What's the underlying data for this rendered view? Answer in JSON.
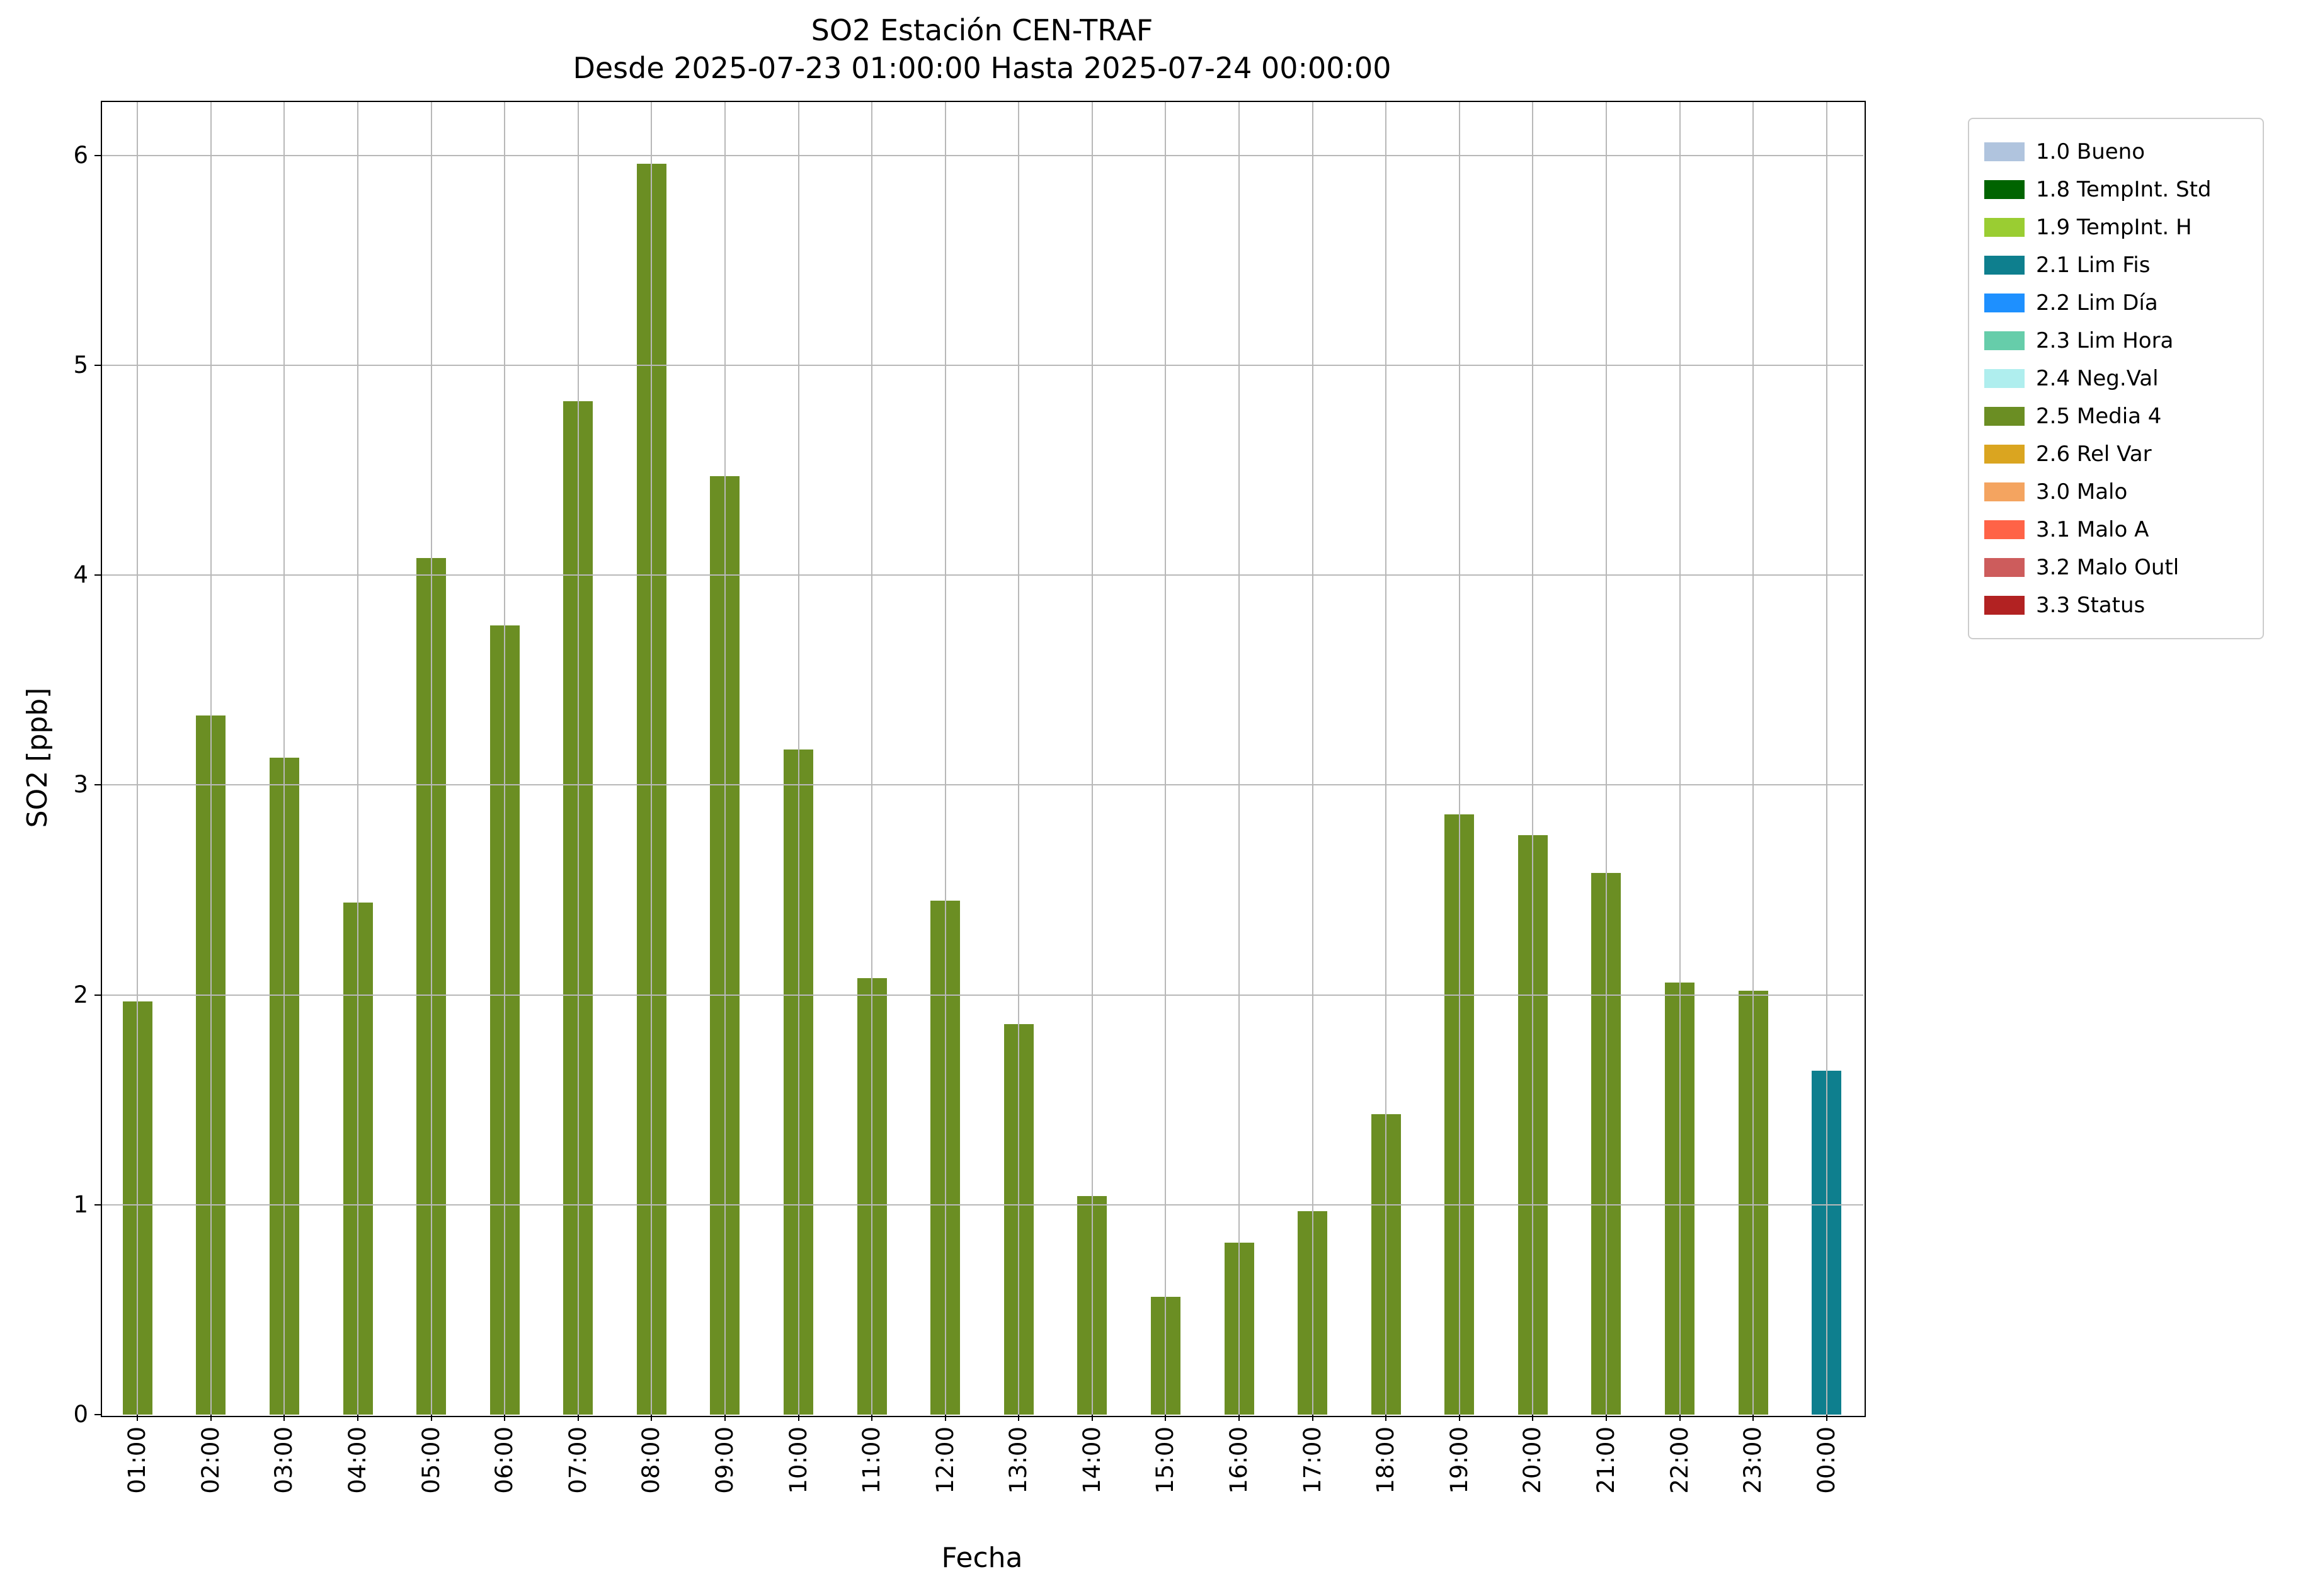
{
  "chart_data": {
    "type": "bar",
    "title": "SO2 Estación CEN-TRAF",
    "subtitle": "Desde 2025-07-23 01:00:00 Hasta 2025-07-24 00:00:00",
    "xlabel": "Fecha",
    "ylabel": "SO2 [ppb]",
    "ylim": [
      0,
      6.26
    ],
    "yticks": [
      0,
      1,
      2,
      3,
      4,
      5,
      6
    ],
    "grid": true,
    "grid_color": "#b8b8b8",
    "legend_position": "upper-right-outside",
    "categories": [
      "01:00",
      "02:00",
      "03:00",
      "04:00",
      "05:00",
      "06:00",
      "07:00",
      "08:00",
      "09:00",
      "10:00",
      "11:00",
      "12:00",
      "13:00",
      "14:00",
      "15:00",
      "16:00",
      "17:00",
      "18:00",
      "19:00",
      "20:00",
      "21:00",
      "22:00",
      "23:00",
      "00:00"
    ],
    "values": [
      1.97,
      3.33,
      3.13,
      2.44,
      4.08,
      3.76,
      4.83,
      5.96,
      4.47,
      3.17,
      2.08,
      2.45,
      1.86,
      1.04,
      0.56,
      0.82,
      0.97,
      1.43,
      2.86,
      2.76,
      2.58,
      2.06,
      2.02,
      1.64
    ],
    "bar_colors": [
      "#6b8e23",
      "#6b8e23",
      "#6b8e23",
      "#6b8e23",
      "#6b8e23",
      "#6b8e23",
      "#6b8e23",
      "#6b8e23",
      "#6b8e23",
      "#6b8e23",
      "#6b8e23",
      "#6b8e23",
      "#6b8e23",
      "#6b8e23",
      "#6b8e23",
      "#6b8e23",
      "#6b8e23",
      "#6b8e23",
      "#6b8e23",
      "#6b8e23",
      "#6b8e23",
      "#6b8e23",
      "#6b8e23",
      "#0e7f8e"
    ],
    "legend": [
      {
        "label": "1.0 Bueno",
        "color": "#b0c4de"
      },
      {
        "label": "1.8 TempInt. Std",
        "color": "#006400"
      },
      {
        "label": "1.9 TempInt. H",
        "color": "#9acd32"
      },
      {
        "label": "2.1 Lim Fis",
        "color": "#0e7f8e"
      },
      {
        "label": "2.2 Lim Día",
        "color": "#1e90ff"
      },
      {
        "label": "2.3 Lim Hora",
        "color": "#66cdaa"
      },
      {
        "label": "2.4 Neg.Val",
        "color": "#afeeee"
      },
      {
        "label": "2.5 Media 4",
        "color": "#6b8e23"
      },
      {
        "label": "2.6 Rel Var",
        "color": "#daa520"
      },
      {
        "label": "3.0 Malo",
        "color": "#f4a460"
      },
      {
        "label": "3.1 Malo A",
        "color": "#ff6347"
      },
      {
        "label": "3.2 Malo Outl",
        "color": "#cd5c5c"
      },
      {
        "label": "3.3 Status",
        "color": "#b22222"
      }
    ]
  }
}
